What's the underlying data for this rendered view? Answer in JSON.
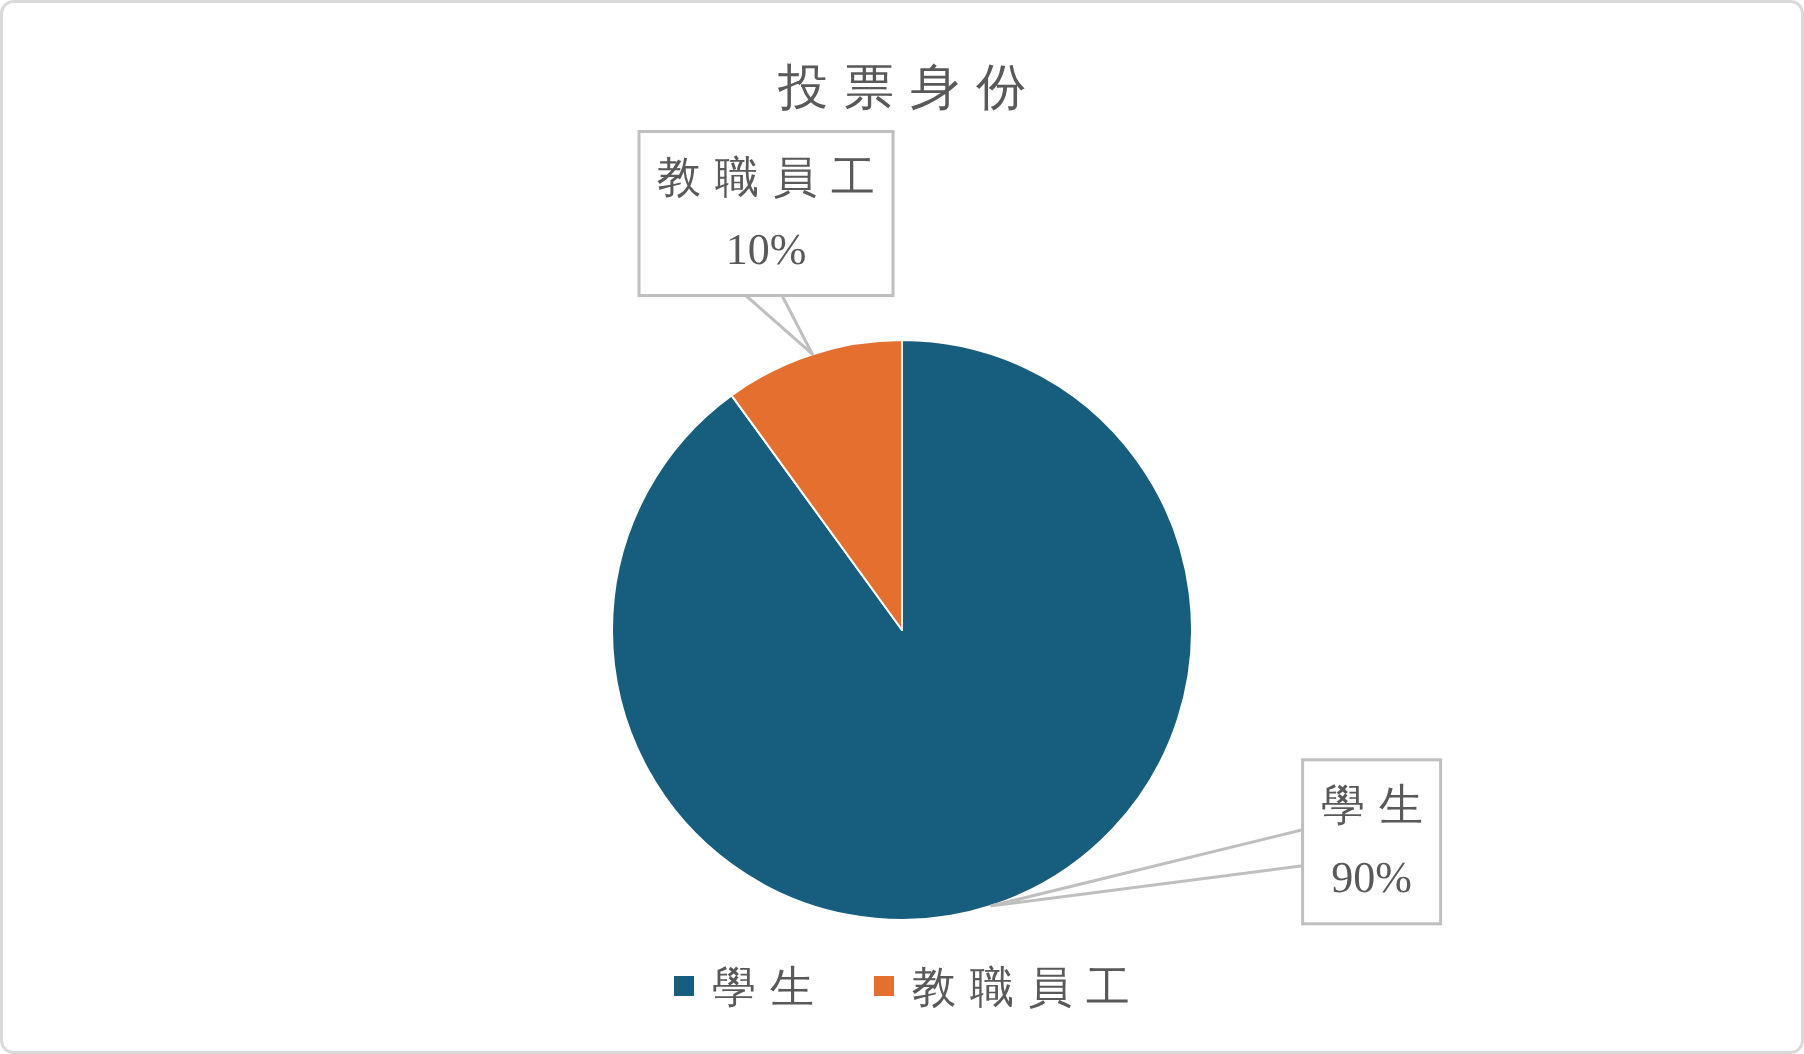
{
  "chart_data": {
    "type": "pie",
    "title": "投票身份",
    "categories": [
      "學生",
      "教職員工"
    ],
    "values": [
      90,
      10
    ],
    "colors": [
      "#175e7e",
      "#e46f2e"
    ],
    "value_labels": [
      "90%",
      "10%"
    ],
    "legend": "bottom"
  }
}
